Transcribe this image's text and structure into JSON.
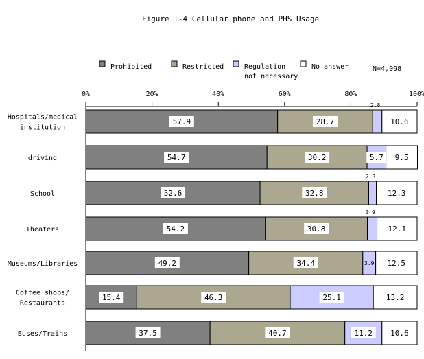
{
  "chart_data": {
    "type": "bar",
    "orientation": "horizontal",
    "stacked": true,
    "title": "Figure I-4 Cellular phone and PHS Usage",
    "note": "N=4,098",
    "categories": [
      [
        "Hospitals/medical",
        "institution"
      ],
      [
        "driving"
      ],
      [
        "School"
      ],
      [
        "Theaters"
      ],
      [
        "Museums/Libraries"
      ],
      [
        "Coffee shops/",
        "Restaurants"
      ],
      [
        "Buses/Trains"
      ]
    ],
    "series": [
      {
        "name": "Prohibited",
        "color": "#808080",
        "values": [
          57.9,
          54.7,
          52.6,
          54.2,
          49.2,
          15.4,
          37.5
        ]
      },
      {
        "name": "Restricted",
        "color": "#aca78f",
        "values": [
          28.7,
          30.2,
          32.8,
          30.8,
          34.4,
          46.3,
          40.7
        ]
      },
      {
        "name": "Regulation not necessary",
        "legend_lines": [
          "Regulation",
          "not necessary"
        ],
        "color": "#ccccff",
        "values": [
          2.8,
          5.7,
          2.3,
          2.9,
          3.9,
          25.1,
          11.2
        ]
      },
      {
        "name": "No answer",
        "color": "#ffffff",
        "values": [
          10.6,
          9.5,
          12.3,
          12.1,
          12.5,
          13.2,
          10.6
        ]
      }
    ],
    "xlim": [
      0,
      100
    ],
    "xticks": [
      "0%",
      "20%",
      "40%",
      "60%",
      "80%",
      "100%"
    ],
    "legend_position": "top"
  }
}
